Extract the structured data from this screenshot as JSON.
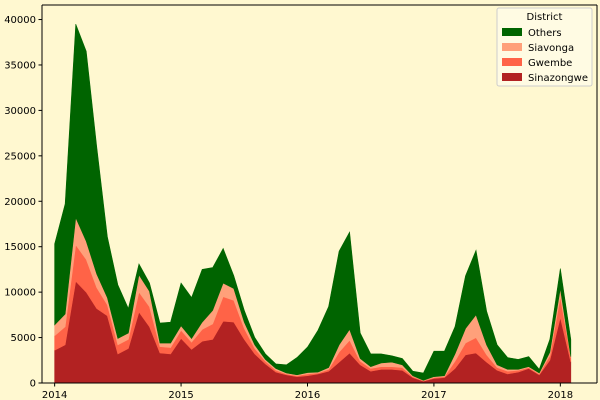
{
  "chart_data": {
    "type": "area",
    "stacked": true,
    "x_unit": "decimal year",
    "x": [
      2014.0,
      2014.083,
      2014.167,
      2014.25,
      2014.333,
      2014.417,
      2014.5,
      2014.583,
      2014.667,
      2014.75,
      2014.833,
      2014.917,
      2015.0,
      2015.083,
      2015.167,
      2015.25,
      2015.333,
      2015.417,
      2015.5,
      2015.583,
      2015.667,
      2015.75,
      2015.833,
      2015.917,
      2016.0,
      2016.083,
      2016.167,
      2016.25,
      2016.333,
      2016.417,
      2016.5,
      2016.583,
      2016.667,
      2016.75,
      2016.833,
      2016.917,
      2017.0,
      2017.083,
      2017.167,
      2017.25,
      2017.333,
      2017.417,
      2017.5,
      2017.583,
      2017.667,
      2017.75,
      2017.833,
      2017.917,
      2018.0,
      2018.083
    ],
    "series": [
      {
        "name": "Sinazongwe",
        "color": "#b22222",
        "values": [
          3600,
          4200,
          11200,
          10000,
          8200,
          7400,
          3200,
          3800,
          7800,
          6200,
          3300,
          3200,
          4900,
          3700,
          4600,
          4800,
          6800,
          6700,
          4800,
          3200,
          2100,
          1200,
          900,
          700,
          800,
          1000,
          1300,
          2300,
          3300,
          2000,
          1300,
          1500,
          1500,
          1400,
          600,
          200,
          500,
          600,
          1600,
          3100,
          3300,
          2300,
          1400,
          1000,
          1200,
          1600,
          900,
          2500,
          7200,
          2300
        ]
      },
      {
        "name": "Gwembe",
        "color": "#ff6347",
        "values": [
          1600,
          2000,
          4000,
          3600,
          2300,
          1200,
          1000,
          1000,
          2200,
          2200,
          700,
          700,
          900,
          800,
          1300,
          1700,
          2700,
          2400,
          1200,
          600,
          300,
          200,
          100,
          100,
          200,
          100,
          200,
          1100,
          1400,
          400,
          300,
          300,
          300,
          300,
          100,
          50,
          100,
          100,
          800,
          1300,
          1700,
          800,
          300,
          300,
          200,
          100,
          100,
          500,
          2300,
          500
        ]
      },
      {
        "name": "Siavonga",
        "color": "#ffa07a",
        "values": [
          1200,
          1400,
          3000,
          2000,
          1500,
          800,
          700,
          700,
          1900,
          1700,
          400,
          500,
          500,
          400,
          800,
          1500,
          1500,
          1300,
          700,
          400,
          200,
          200,
          100,
          100,
          150,
          100,
          200,
          800,
          1200,
          300,
          200,
          400,
          500,
          300,
          100,
          50,
          100,
          100,
          800,
          1600,
          2500,
          1100,
          300,
          200,
          100,
          100,
          100,
          400,
          900,
          100
        ]
      },
      {
        "name": "Others",
        "color": "#006400",
        "values": [
          8900,
          12100,
          21300,
          20900,
          14000,
          6700,
          5900,
          2700,
          1200,
          900,
          2200,
          2300,
          4700,
          4500,
          5800,
          4700,
          3800,
          1400,
          1300,
          800,
          600,
          500,
          900,
          1900,
          2800,
          4600,
          6700,
          10300,
          10700,
          2800,
          1400,
          1000,
          700,
          700,
          500,
          800,
          2800,
          2700,
          3000,
          5800,
          7100,
          3700,
          2200,
          1300,
          1100,
          1100,
          400,
          1400,
          2200,
          1900
        ]
      }
    ],
    "xlim": [
      2013.9,
      2018.29
    ],
    "ylim": [
      0,
      41600
    ],
    "x_ticks": [
      2014,
      2015,
      2016,
      2017,
      2018
    ],
    "y_ticks": [
      0,
      5000,
      10000,
      15000,
      20000,
      25000,
      30000,
      35000,
      40000
    ],
    "legend": {
      "title": "District",
      "position": "top-right",
      "order": [
        "Others",
        "Siavonga",
        "Gwembe",
        "Sinazongwe"
      ]
    },
    "grid": false,
    "background": "#fff8d0"
  }
}
